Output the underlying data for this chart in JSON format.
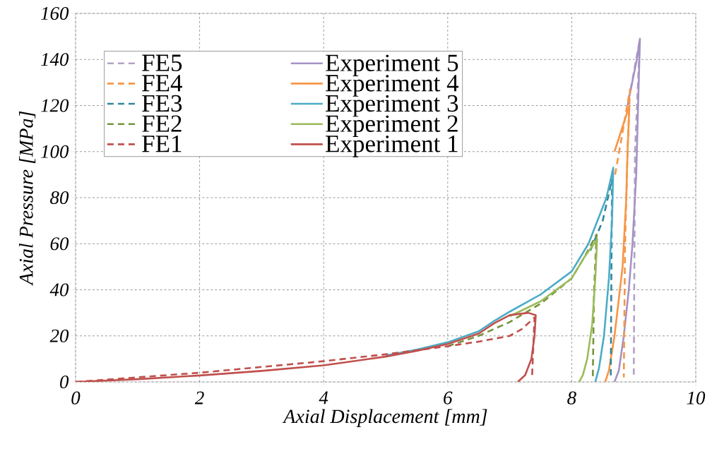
{
  "chart_data": {
    "type": "line",
    "xlabel": "Axial Displacement [mm]",
    "ylabel": "Axial Pressure [MPa]",
    "xlim": [
      0,
      10
    ],
    "ylim": [
      0,
      160
    ],
    "xticks": [
      0,
      2,
      4,
      6,
      8,
      10
    ],
    "yticks": [
      0,
      20,
      40,
      60,
      80,
      100,
      120,
      140,
      160
    ],
    "grid": true,
    "legend": "top left",
    "marker": "none",
    "series": [
      {
        "name": "FE5",
        "color": "#b3a2c7",
        "line_style": "dashed",
        "x": [
          8.95,
          9.1,
          9.02,
          9.0
        ],
        "values": [
          127,
          149,
          100,
          2
        ]
      },
      {
        "name": "Experiment 5",
        "color": "#a593c4",
        "line_style": "solid",
        "x": [
          8.9,
          9.05,
          9.1,
          9.07,
          9.04,
          8.98,
          8.92,
          8.84,
          8.76,
          8.69
        ],
        "values": [
          120,
          140,
          149,
          120,
          90,
          60,
          40,
          20,
          5,
          0
        ]
      },
      {
        "name": "FE4",
        "color": "#f79646",
        "line_style": "dashed",
        "x": [
          8.7,
          8.94,
          8.9,
          8.86,
          8.84
        ],
        "values": [
          90,
          127,
          100,
          60,
          2
        ]
      },
      {
        "name": "Experiment 4",
        "color": "#f79646",
        "line_style": "solid",
        "x": [
          8.69,
          8.93,
          8.9,
          8.88,
          8.82,
          8.69,
          8.6,
          8.54
        ],
        "values": [
          100,
          120,
          100,
          80,
          50,
          20,
          5,
          0
        ]
      },
      {
        "name": "FE3",
        "color": "#31859c",
        "line_style": "dashed",
        "x": [
          8.3,
          8.5,
          8.65,
          8.64,
          8.63
        ],
        "values": [
          57,
          70,
          88,
          50,
          2
        ]
      },
      {
        "name": "Experiment 3",
        "color": "#4bacc6",
        "line_style": "solid",
        "x": [
          5,
          5.5,
          6,
          6.5,
          6.75,
          7,
          7.5,
          8,
          8.27,
          8.56,
          8.67,
          8.65,
          8.6,
          8.52,
          8.44,
          8.38
        ],
        "values": [
          11.5,
          14,
          17.2,
          22,
          26.5,
          30.5,
          38,
          48,
          60,
          80,
          93,
          70,
          45,
          20,
          6,
          0
        ]
      },
      {
        "name": "FE2",
        "color": "#77933c",
        "line_style": "dashed",
        "x": [
          6,
          6.5,
          7,
          7.5,
          8,
          8.2,
          8.4,
          8.36,
          8.34
        ],
        "values": [
          15.5,
          20,
          26,
          34,
          45,
          54,
          64,
          40,
          2
        ]
      },
      {
        "name": "Experiment 2",
        "color": "#9bbb59",
        "line_style": "solid",
        "x": [
          7,
          7.5,
          8,
          8.2,
          8.41,
          8.38,
          8.33,
          8.25,
          8.18,
          8.12
        ],
        "values": [
          28.5,
          35,
          45,
          54,
          62,
          45,
          25,
          10,
          3,
          0
        ]
      },
      {
        "name": "FE1",
        "color": "#c0504d",
        "line_style": "dashed",
        "x": [
          0,
          1,
          2,
          3,
          4,
          5,
          6,
          6.5,
          7,
          7.2,
          7.4,
          7.38,
          7.36
        ],
        "values": [
          0,
          2,
          4,
          6.5,
          9,
          12,
          15.5,
          17.5,
          20,
          23,
          28,
          15,
          2
        ]
      },
      {
        "name": "Experiment 1",
        "color": "#c0504d",
        "line_style": "solid",
        "x": [
          0,
          1,
          2,
          3,
          4,
          5,
          5.5,
          6,
          6.5,
          6.75,
          7,
          7.3,
          7.42,
          7.4,
          7.35,
          7.25,
          7.13
        ],
        "values": [
          0,
          1.2,
          2.8,
          4.8,
          7.2,
          11,
          13.5,
          16.5,
          21,
          25.5,
          29,
          30,
          29,
          20,
          10,
          3,
          0
        ]
      }
    ]
  }
}
